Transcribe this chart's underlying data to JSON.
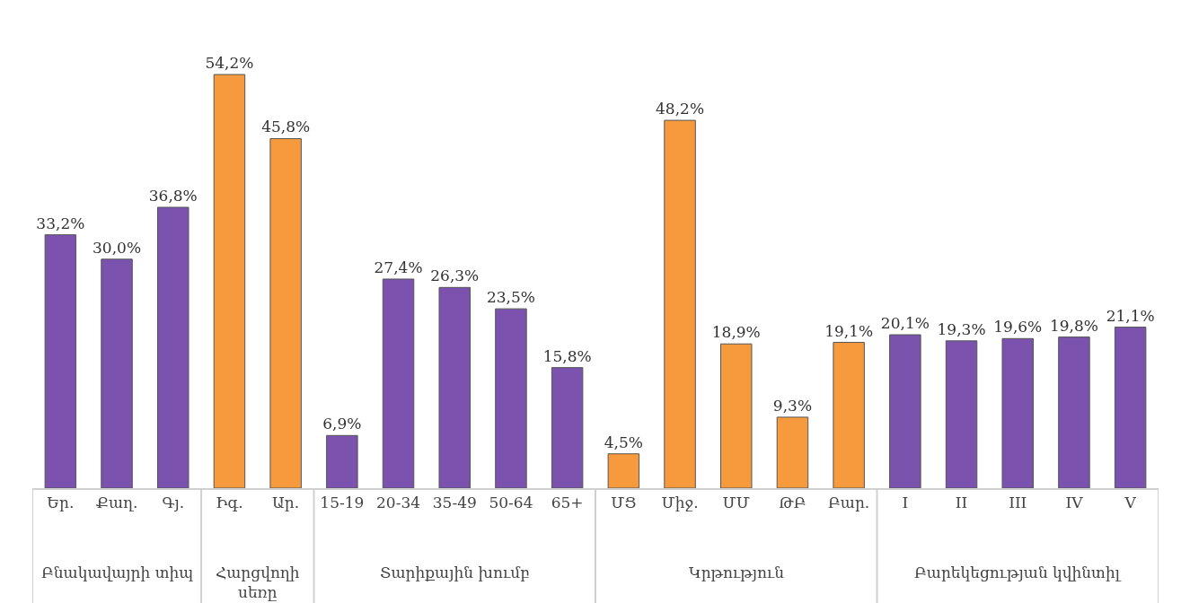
{
  "chart_data": {
    "type": "bar",
    "categories": [
      "Եր.",
      "Քաղ.",
      "Գյ.",
      "Իգ.",
      "Ար.",
      "15-19",
      "20-34",
      "35-49",
      "50-64",
      "65+",
      "ՄՑ",
      "Միջ.",
      "ՄՄ",
      "ԹԲ",
      "Բար.",
      "I",
      "II",
      "III",
      "IV",
      "V"
    ],
    "values": [
      33.2,
      30.0,
      36.8,
      54.2,
      45.8,
      6.9,
      27.4,
      26.3,
      23.5,
      15.8,
      4.5,
      48.2,
      18.9,
      9.3,
      19.1,
      20.1,
      19.3,
      19.6,
      19.8,
      21.1
    ],
    "colors": [
      "#7b52ae",
      "#7b52ae",
      "#7b52ae",
      "#f79a3e",
      "#f79a3e",
      "#7b52ae",
      "#7b52ae",
      "#7b52ae",
      "#7b52ae",
      "#7b52ae",
      "#f79a3e",
      "#f79a3e",
      "#f79a3e",
      "#f79a3e",
      "#f79a3e",
      "#7b52ae",
      "#7b52ae",
      "#7b52ae",
      "#7b52ae",
      "#7b52ae"
    ],
    "value_labels": [
      "33,2%",
      "30,0%",
      "36,8%",
      "54,2%",
      "45,8%",
      "6,9%",
      "27,4%",
      "26,3%",
      "23,5%",
      "15,8%",
      "4,5%",
      "48,2%",
      "18,9%",
      "9,3%",
      "19,1%",
      "20,1%",
      "19,3%",
      "19,6%",
      "19,8%",
      "21,1%"
    ],
    "annotations": [
      "Բնակավայրի տիպ",
      "Հարցվողի սեռը",
      "Տարիքային խումբ",
      "Կրթություն",
      "Բարեկեցության կվինտիլ"
    ]
  }
}
